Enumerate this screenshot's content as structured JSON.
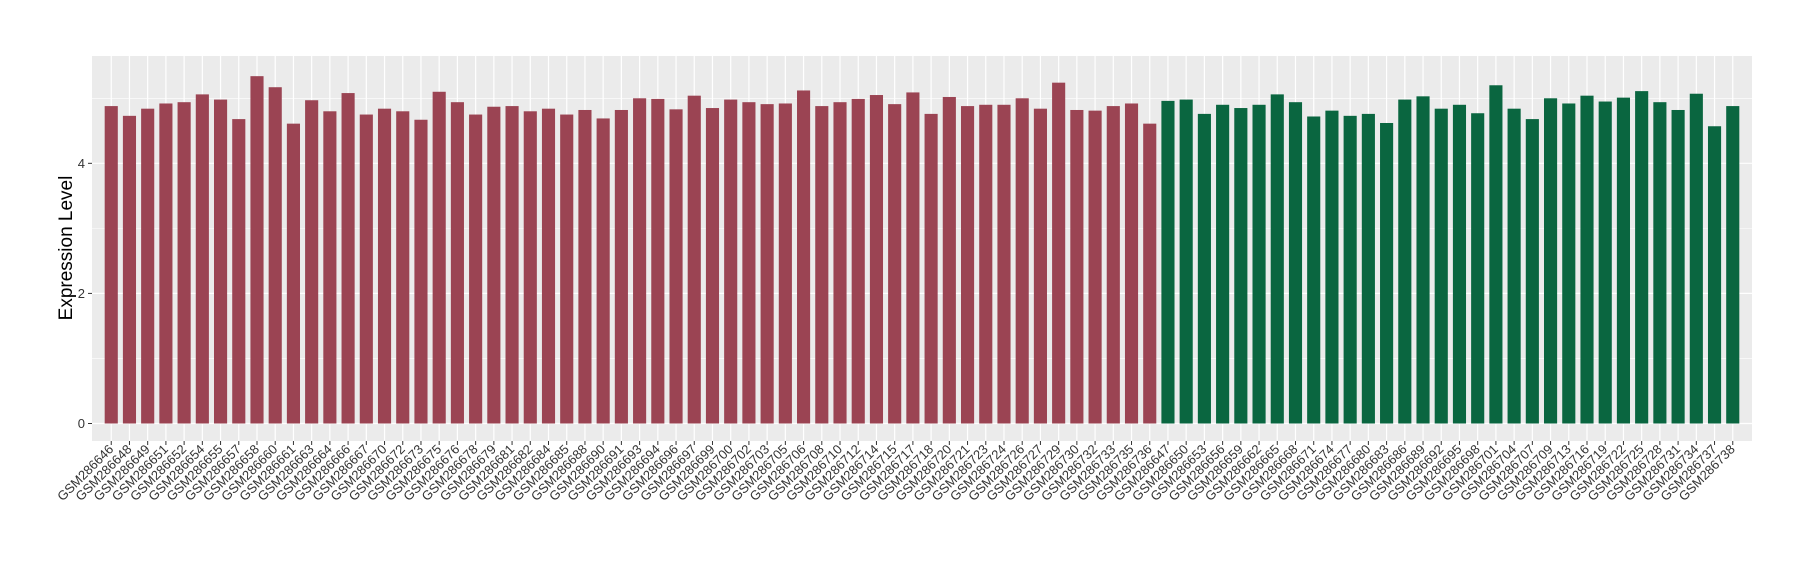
{
  "chart_data": {
    "type": "bar",
    "title": "",
    "xlabel": "",
    "ylabel": "Expression Level",
    "ylim": [
      0,
      5.65
    ],
    "yticks": [
      0,
      2,
      4
    ],
    "grid": true,
    "legend": "none",
    "colors": {
      "group1": "#9b4453",
      "group2": "#0a6640",
      "panel": "#ebebeb",
      "grid": "#ffffff"
    },
    "categories": [
      "GSM286646",
      "GSM286648",
      "GSM286649",
      "GSM286651",
      "GSM286652",
      "GSM286654",
      "GSM286655",
      "GSM286657",
      "GSM286658",
      "GSM286660",
      "GSM286661",
      "GSM286663",
      "GSM286664",
      "GSM286666",
      "GSM286667",
      "GSM286670",
      "GSM286672",
      "GSM286673",
      "GSM286675",
      "GSM286676",
      "GSM286678",
      "GSM286679",
      "GSM286681",
      "GSM286682",
      "GSM286684",
      "GSM286685",
      "GSM286688",
      "GSM286690",
      "GSM286691",
      "GSM286693",
      "GSM286694",
      "GSM286696",
      "GSM286697",
      "GSM286699",
      "GSM286700",
      "GSM286702",
      "GSM286703",
      "GSM286705",
      "GSM286706",
      "GSM286708",
      "GSM286710",
      "GSM286712",
      "GSM286714",
      "GSM286715",
      "GSM286717",
      "GSM286718",
      "GSM286720",
      "GSM286721",
      "GSM286723",
      "GSM286724",
      "GSM286726",
      "GSM286727",
      "GSM286729",
      "GSM286730",
      "GSM286732",
      "GSM286733",
      "GSM286735",
      "GSM286736",
      "GSM286647",
      "GSM286650",
      "GSM286653",
      "GSM286656",
      "GSM286659",
      "GSM286662",
      "GSM286665",
      "GSM286668",
      "GSM286671",
      "GSM286674",
      "GSM286677",
      "GSM286680",
      "GSM286683",
      "GSM286686",
      "GSM286689",
      "GSM286692",
      "GSM286695",
      "GSM286698",
      "GSM286701",
      "GSM286704",
      "GSM286707",
      "GSM286709",
      "GSM286713",
      "GSM286716",
      "GSM286719",
      "GSM286722",
      "GSM286725",
      "GSM286728",
      "GSM286731",
      "GSM286734",
      "GSM286737",
      "GSM286738"
    ],
    "values": [
      4.88,
      4.73,
      4.84,
      4.92,
      4.94,
      5.06,
      4.98,
      4.68,
      5.34,
      5.17,
      4.61,
      4.97,
      4.8,
      5.08,
      4.75,
      4.84,
      4.8,
      4.67,
      5.1,
      4.94,
      4.75,
      4.87,
      4.88,
      4.8,
      4.84,
      4.75,
      4.82,
      4.69,
      4.82,
      5.0,
      4.99,
      4.83,
      5.04,
      4.85,
      4.98,
      4.94,
      4.91,
      4.92,
      5.12,
      4.88,
      4.94,
      4.99,
      5.05,
      4.91,
      5.09,
      4.76,
      5.02,
      4.88,
      4.9,
      4.9,
      5.0,
      4.84,
      5.24,
      4.82,
      4.81,
      4.88,
      4.92,
      4.61,
      4.96,
      4.98,
      4.76,
      4.9,
      4.85,
      4.9,
      5.06,
      4.94,
      4.72,
      4.81,
      4.73,
      4.76,
      4.62,
      4.98,
      5.03,
      4.84,
      4.9,
      4.77,
      5.2,
      4.84,
      4.68,
      5.0,
      4.92,
      5.04,
      4.95,
      5.01,
      5.11,
      4.94,
      4.82,
      5.07,
      4.57,
      4.88
    ],
    "groups": [
      1,
      1,
      1,
      1,
      1,
      1,
      1,
      1,
      1,
      1,
      1,
      1,
      1,
      1,
      1,
      1,
      1,
      1,
      1,
      1,
      1,
      1,
      1,
      1,
      1,
      1,
      1,
      1,
      1,
      1,
      1,
      1,
      1,
      1,
      1,
      1,
      1,
      1,
      1,
      1,
      1,
      1,
      1,
      1,
      1,
      1,
      1,
      1,
      1,
      1,
      1,
      1,
      1,
      1,
      1,
      1,
      1,
      1,
      2,
      2,
      2,
      2,
      2,
      2,
      2,
      2,
      2,
      2,
      2,
      2,
      2,
      2,
      2,
      2,
      2,
      2,
      2,
      2,
      2,
      2,
      2,
      2,
      2,
      2,
      2,
      2,
      2,
      2,
      2,
      2
    ]
  }
}
